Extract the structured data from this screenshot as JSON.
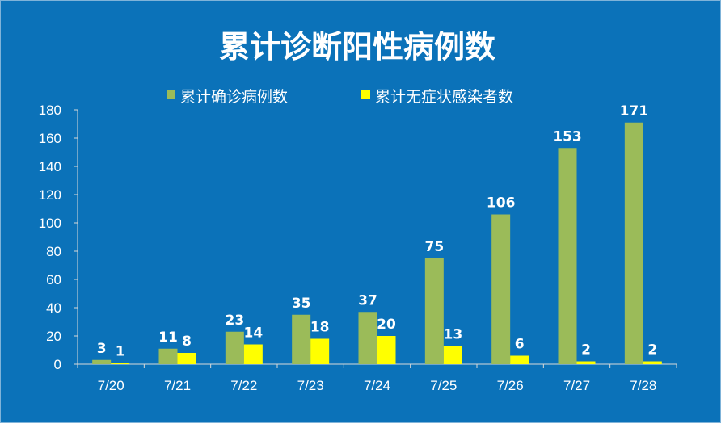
{
  "chart_data": {
    "type": "bar",
    "title": "累计诊断阳性病例数",
    "categories": [
      "7/20",
      "7/21",
      "7/22",
      "7/23",
      "7/24",
      "7/25",
      "7/26",
      "7/27",
      "7/28"
    ],
    "series": [
      {
        "name": "累计确诊病例数",
        "values": [
          3,
          11,
          23,
          35,
          37,
          75,
          106,
          153,
          171
        ],
        "color": "#9bbb59"
      },
      {
        "name": "累计无症状感染者数",
        "values": [
          1,
          8,
          14,
          18,
          20,
          13,
          6,
          2,
          2
        ],
        "color": "#ffff00"
      }
    ],
    "ylim": [
      0,
      180
    ],
    "yticks": [
      0,
      20,
      40,
      60,
      80,
      100,
      120,
      140,
      160,
      180
    ],
    "legend_position": "top-center",
    "grid": false,
    "background_color": "#0b72b9"
  }
}
